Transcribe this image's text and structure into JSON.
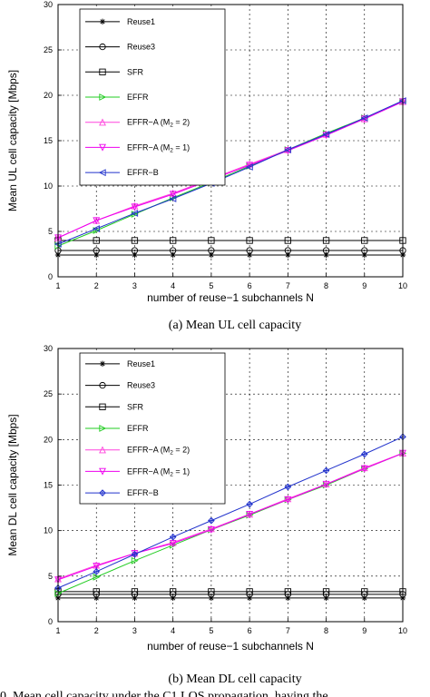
{
  "figure_caption": "0. Mean cell capacity under the C1 LOS propagation, having the",
  "series_colors": {
    "Reuse1": "#000000",
    "Reuse3": "#000000",
    "SFR": "#000000",
    "EFFR": "#22cc22",
    "EFFR-A (M2 = 2)": "#ff44dd",
    "EFFR-A (M2 = 1)": "#ee00ee",
    "EFFR-B": "#2233cc"
  },
  "chart_data": [
    {
      "type": "line",
      "caption": "(a)    Mean UL cell capacity",
      "xlabel": "number of reuse−1 subchannels N",
      "ylabel": "Mean UL cell capacity [Mbps]",
      "xlim": [
        1,
        10
      ],
      "ylim": [
        0,
        30
      ],
      "xticks": [
        1,
        2,
        3,
        4,
        5,
        6,
        7,
        8,
        9,
        10
      ],
      "yticks": [
        0,
        5,
        10,
        15,
        20,
        25,
        30
      ],
      "grid": true,
      "legend_position": "top-left",
      "x": [
        1,
        2,
        3,
        4,
        5,
        6,
        7,
        8,
        9,
        10
      ],
      "series": [
        {
          "name": "Reuse1",
          "marker": "star",
          "values": [
            2.4,
            2.4,
            2.4,
            2.4,
            2.4,
            2.4,
            2.4,
            2.4,
            2.4,
            2.4
          ]
        },
        {
          "name": "Reuse3",
          "marker": "circle",
          "values": [
            2.9,
            2.9,
            2.9,
            2.9,
            2.9,
            2.9,
            2.9,
            2.9,
            2.9,
            2.9
          ]
        },
        {
          "name": "SFR",
          "marker": "square",
          "values": [
            4.0,
            4.0,
            4.0,
            4.0,
            4.0,
            4.0,
            4.0,
            4.0,
            4.0,
            4.0
          ]
        },
        {
          "name": "EFFR",
          "marker": "triangle-right",
          "values": [
            3.4,
            5.1,
            6.9,
            8.7,
            10.4,
            12.2,
            14.0,
            15.8,
            17.5,
            19.3
          ]
        },
        {
          "name": "EFFR−A (M",
          "sub": "2",
          "name_tail": " = 2)",
          "marker": "triangle-up",
          "values": [
            4.3,
            6.2,
            7.8,
            9.2,
            10.8,
            12.4,
            14.0,
            15.7,
            17.4,
            19.3
          ]
        },
        {
          "name": "EFFR−A (M",
          "sub": "2",
          "name_tail": " = 1)",
          "marker": "triangle-down",
          "values": [
            4.3,
            6.2,
            7.7,
            9.1,
            10.7,
            12.3,
            13.9,
            15.6,
            17.4,
            19.3
          ]
        },
        {
          "name": "EFFR−B",
          "marker": "triangle-left",
          "values": [
            3.6,
            5.3,
            7.0,
            8.6,
            10.3,
            12.1,
            14.0,
            15.7,
            17.5,
            19.4
          ]
        }
      ]
    },
    {
      "type": "line",
      "caption": "(b)    Mean DL cell capacity",
      "xlabel": "number of reuse−1 subchannels N",
      "ylabel": "Mean DL cell capacity [Mbps]",
      "xlim": [
        1,
        10
      ],
      "ylim": [
        0,
        30
      ],
      "xticks": [
        1,
        2,
        3,
        4,
        5,
        6,
        7,
        8,
        9,
        10
      ],
      "yticks": [
        0,
        5,
        10,
        15,
        20,
        25,
        30
      ],
      "grid": true,
      "legend_position": "top-left",
      "x": [
        1,
        2,
        3,
        4,
        5,
        6,
        7,
        8,
        9,
        10
      ],
      "series": [
        {
          "name": "Reuse1",
          "marker": "star",
          "values": [
            2.6,
            2.6,
            2.6,
            2.6,
            2.6,
            2.6,
            2.6,
            2.6,
            2.6,
            2.6
          ]
        },
        {
          "name": "Reuse3",
          "marker": "circle",
          "values": [
            3.0,
            3.0,
            3.0,
            3.0,
            3.0,
            3.0,
            3.0,
            3.0,
            3.0,
            3.0
          ]
        },
        {
          "name": "SFR",
          "marker": "square",
          "values": [
            3.3,
            3.3,
            3.3,
            3.3,
            3.3,
            3.3,
            3.3,
            3.3,
            3.3,
            3.3
          ]
        },
        {
          "name": "EFFR",
          "marker": "triangle-right",
          "values": [
            3.1,
            4.9,
            6.7,
            8.4,
            10.1,
            11.7,
            13.4,
            15.0,
            16.8,
            18.5
          ]
        },
        {
          "name": "EFFR−A (M",
          "sub": "2",
          "name_tail": " = 2)",
          "marker": "triangle-up",
          "values": [
            4.7,
            6.2,
            7.5,
            8.7,
            10.2,
            11.8,
            13.5,
            15.1,
            16.9,
            18.5
          ]
        },
        {
          "name": "EFFR−A (M",
          "sub": "2",
          "name_tail": " = 1)",
          "marker": "triangle-down",
          "values": [
            4.6,
            6.1,
            7.5,
            8.6,
            10.1,
            11.8,
            13.4,
            15.1,
            16.8,
            18.5
          ]
        },
        {
          "name": "EFFR−B",
          "marker": "star-diamond",
          "values": [
            3.7,
            5.5,
            7.4,
            9.3,
            11.1,
            12.9,
            14.8,
            16.6,
            18.4,
            20.3
          ]
        }
      ]
    }
  ]
}
